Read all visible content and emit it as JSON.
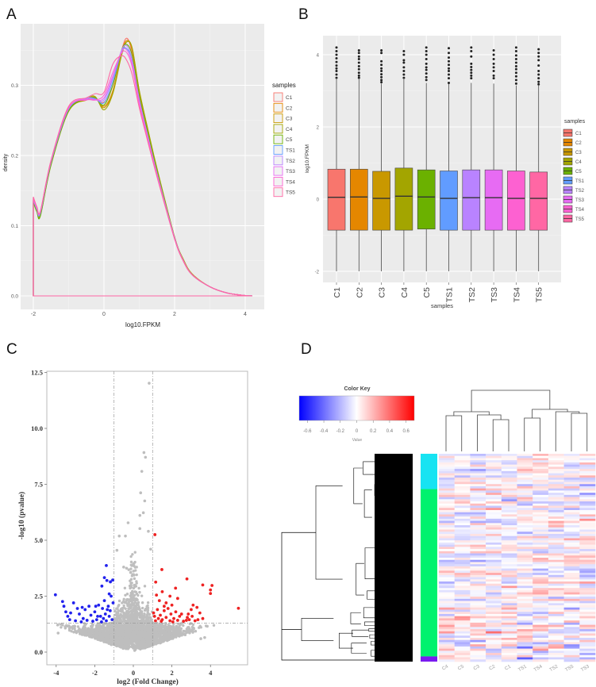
{
  "panel_labels": {
    "a": "A",
    "b": "B",
    "c": "C",
    "d": "D"
  },
  "chart_data": [
    {
      "panel": "A",
      "type": "line",
      "subtype": "density",
      "xlabel": "log10.FPKM",
      "ylabel": "density",
      "x_ticks": [
        "-2",
        "0",
        "2",
        "4"
      ],
      "y_ticks": [
        "0.0",
        "0.1",
        "0.2",
        "0.3"
      ],
      "xlim": [
        -2.35,
        4.55
      ],
      "ylim": [
        -0.019,
        0.388
      ],
      "grid": true,
      "background": "#EBEBEB",
      "legend": {
        "title": "samples",
        "position": "right"
      },
      "x": [
        -2,
        -1.9,
        -1.8,
        -1.5,
        -1,
        -0.5,
        -0.25,
        0,
        0.25,
        0.5,
        0.65,
        0.8,
        1,
        1.25,
        1.5,
        2,
        2.25,
        2.5,
        3,
        3.5,
        4,
        4.2
      ],
      "series": [
        {
          "name": "C1",
          "color": "#F8766D",
          "values": [
            0.138,
            0.125,
            0.118,
            0.19,
            0.266,
            0.279,
            0.28,
            0.276,
            0.3,
            0.35,
            0.367,
            0.345,
            0.282,
            0.228,
            0.176,
            0.082,
            0.05,
            0.03,
            0.013,
            0.004,
            0.0005,
            0
          ]
        },
        {
          "name": "C2",
          "color": "#E58700",
          "values": [
            0.136,
            0.122,
            0.116,
            0.188,
            0.263,
            0.28,
            0.282,
            0.27,
            0.292,
            0.347,
            0.364,
            0.35,
            0.29,
            0.233,
            0.18,
            0.083,
            0.051,
            0.031,
            0.013,
            0.004,
            0.0005,
            0
          ]
        },
        {
          "name": "C3",
          "color": "#C99800",
          "values": [
            0.135,
            0.121,
            0.116,
            0.188,
            0.264,
            0.279,
            0.283,
            0.268,
            0.29,
            0.345,
            0.362,
            0.352,
            0.292,
            0.235,
            0.181,
            0.084,
            0.051,
            0.031,
            0.013,
            0.004,
            0.0005,
            0
          ]
        },
        {
          "name": "C4",
          "color": "#A3A500",
          "values": [
            0.133,
            0.12,
            0.115,
            0.186,
            0.263,
            0.28,
            0.284,
            0.265,
            0.288,
            0.343,
            0.362,
            0.353,
            0.293,
            0.236,
            0.182,
            0.084,
            0.052,
            0.031,
            0.013,
            0.004,
            0.0005,
            0
          ]
        },
        {
          "name": "C5",
          "color": "#6BB100",
          "values": [
            0.134,
            0.12,
            0.114,
            0.187,
            0.264,
            0.28,
            0.282,
            0.272,
            0.3,
            0.35,
            0.358,
            0.342,
            0.285,
            0.23,
            0.178,
            0.083,
            0.05,
            0.03,
            0.013,
            0.004,
            0.0005,
            0
          ]
        },
        {
          "name": "TS1",
          "color": "#619CFF",
          "values": [
            0.137,
            0.123,
            0.118,
            0.19,
            0.266,
            0.281,
            0.281,
            0.275,
            0.305,
            0.348,
            0.352,
            0.335,
            0.28,
            0.226,
            0.175,
            0.082,
            0.05,
            0.03,
            0.013,
            0.004,
            0.0005,
            0
          ]
        },
        {
          "name": "TS2",
          "color": "#B983FF",
          "values": [
            0.137,
            0.124,
            0.119,
            0.191,
            0.267,
            0.281,
            0.28,
            0.279,
            0.31,
            0.35,
            0.356,
            0.336,
            0.28,
            0.226,
            0.175,
            0.083,
            0.05,
            0.03,
            0.013,
            0.004,
            0.0005,
            0
          ]
        },
        {
          "name": "TS3",
          "color": "#E76BF3",
          "values": [
            0.139,
            0.125,
            0.12,
            0.192,
            0.268,
            0.28,
            0.279,
            0.282,
            0.313,
            0.348,
            0.35,
            0.33,
            0.276,
            0.223,
            0.173,
            0.082,
            0.05,
            0.03,
            0.013,
            0.004,
            0.0005,
            0
          ]
        },
        {
          "name": "TS4",
          "color": "#FD61D1",
          "values": [
            0.14,
            0.126,
            0.12,
            0.192,
            0.268,
            0.279,
            0.279,
            0.286,
            0.318,
            0.346,
            0.346,
            0.326,
            0.273,
            0.221,
            0.172,
            0.081,
            0.05,
            0.03,
            0.013,
            0.004,
            0.0005,
            0
          ]
        },
        {
          "name": "TS5",
          "color": "#FF67A4",
          "values": [
            0.141,
            0.127,
            0.121,
            0.193,
            0.27,
            0.282,
            0.288,
            0.29,
            0.33,
            0.342,
            0.335,
            0.315,
            0.268,
            0.218,
            0.17,
            0.081,
            0.049,
            0.03,
            0.013,
            0.004,
            0.0005,
            0
          ]
        }
      ]
    },
    {
      "panel": "B",
      "type": "box",
      "xlabel": "samples",
      "ylabel": "log10.FPKM",
      "y_ticks": [
        "-2",
        "0",
        "2",
        "4"
      ],
      "ylim": [
        -2.31,
        4.53
      ],
      "grid": true,
      "background": "#EBEBEB",
      "legend": {
        "title": "samples",
        "position": "right"
      },
      "categories": [
        "C1",
        "C2",
        "C3",
        "C4",
        "C5",
        "TS1",
        "TS2",
        "TS3",
        "TS4",
        "TS5"
      ],
      "colors": [
        "#F8766D",
        "#E58700",
        "#C99800",
        "#A3A500",
        "#6BB100",
        "#619CFF",
        "#B983FF",
        "#E76BF3",
        "#FD61D1",
        "#FF67A4"
      ],
      "boxes": [
        {
          "min": -2,
          "q1": -0.86,
          "median": 0.05,
          "q3": 0.83,
          "max": 3.32,
          "outliers": [
            3.36,
            3.45,
            3.55,
            3.62,
            3.7,
            3.8,
            3.9,
            4.0,
            4.1,
            4.2
          ]
        },
        {
          "min": -2,
          "q1": -0.86,
          "median": 0.06,
          "q3": 0.83,
          "max": 3.32,
          "outliers": [
            3.36,
            3.42,
            3.5,
            3.6,
            3.68,
            3.78,
            3.88,
            3.95,
            4.05,
            4.12
          ]
        },
        {
          "min": -2,
          "q1": -0.86,
          "median": 0.02,
          "q3": 0.77,
          "max": 3.2,
          "outliers": [
            3.24,
            3.3,
            3.38,
            3.46,
            3.55,
            3.62,
            3.72,
            3.82,
            4.05,
            4.12
          ]
        },
        {
          "min": -2,
          "q1": -0.86,
          "median": 0.08,
          "q3": 0.86,
          "max": 3.32,
          "outliers": [
            3.36,
            3.45,
            3.55,
            3.65,
            3.78,
            3.85,
            4.0,
            4.1
          ]
        },
        {
          "min": -2,
          "q1": -0.83,
          "median": 0.06,
          "q3": 0.81,
          "max": 3.22,
          "outliers": [
            3.3,
            3.38,
            3.48,
            3.58,
            3.65,
            3.75,
            3.88,
            4.0,
            4.1,
            4.2
          ]
        },
        {
          "min": -2,
          "q1": -0.86,
          "median": 0.02,
          "q3": 0.78,
          "max": 3.2,
          "outliers": [
            3.22,
            3.35,
            3.45,
            3.55,
            3.62,
            3.72,
            3.82,
            3.92,
            4.05,
            4.18
          ]
        },
        {
          "min": -2,
          "q1": -0.86,
          "median": 0.04,
          "q3": 0.81,
          "max": 3.22,
          "outliers": [
            3.35,
            3.42,
            3.5,
            3.58,
            3.66,
            3.75,
            3.95,
            4.1,
            4.2
          ]
        },
        {
          "min": -2,
          "q1": -0.86,
          "median": 0.04,
          "q3": 0.81,
          "max": 3.2,
          "outliers": [
            3.35,
            3.42,
            3.55,
            3.65,
            3.75,
            3.88,
            4.0,
            4.12
          ]
        },
        {
          "min": -2,
          "q1": -0.86,
          "median": 0.02,
          "q3": 0.78,
          "max": 3.15,
          "outliers": [
            3.2,
            3.3,
            3.4,
            3.5,
            3.6,
            3.68,
            3.78,
            3.88,
            3.98,
            4.1,
            4.2
          ]
        },
        {
          "min": -2,
          "q1": -0.86,
          "median": 0.02,
          "q3": 0.75,
          "max": 3.15,
          "outliers": [
            3.18,
            3.25,
            3.35,
            3.45,
            3.55,
            3.7,
            3.85,
            3.95,
            4.05,
            4.15
          ]
        }
      ]
    },
    {
      "panel": "C",
      "type": "scatter",
      "subtype": "volcano",
      "xlabel": "log2 (Fold Change)",
      "ylabel": "-log10 (pvalue)",
      "x_ticks": [
        "-4",
        "-2",
        "0",
        "2",
        "4"
      ],
      "y_ticks": [
        "0.0",
        "2.5",
        "5.0",
        "7.5",
        "10.0",
        "12.5"
      ],
      "xlim": [
        -4.6,
        5.8
      ],
      "ylim": [
        -0.5,
        12.6
      ],
      "grid": false,
      "thresholds": {
        "log2_fold_change": [
          -1,
          1
        ],
        "neg_log10_pvalue": 1.3
      },
      "colors": {
        "up": "#EE2222",
        "down": "#2222EE",
        "not_significant": "#BEBEBE"
      },
      "up": [
        [
          1.12,
          5.25
        ],
        [
          1.48,
          3.69
        ],
        [
          2.78,
          3.27
        ],
        [
          3.6,
          3.0
        ],
        [
          4.08,
          2.98
        ],
        [
          4.0,
          2.78
        ],
        [
          4.0,
          2.62
        ],
        [
          5.45,
          1.96
        ],
        [
          1.16,
          3.13
        ],
        [
          2.19,
          2.86
        ],
        [
          1.2,
          2.55
        ],
        [
          1.5,
          2.7
        ],
        [
          1.9,
          2.5
        ],
        [
          2.3,
          2.4
        ],
        [
          1.35,
          2.3
        ],
        [
          1.7,
          2.2
        ],
        [
          2.0,
          2.1
        ],
        [
          1.8,
          1.95
        ],
        [
          1.25,
          1.9
        ],
        [
          1.6,
          1.85
        ],
        [
          2.2,
          1.8
        ],
        [
          2.5,
          1.7
        ],
        [
          3.1,
          2.1
        ],
        [
          3.3,
          2.0
        ],
        [
          3.0,
          1.9
        ],
        [
          3.45,
          1.75
        ],
        [
          3.6,
          1.5
        ],
        [
          2.8,
          1.55
        ],
        [
          2.9,
          1.45
        ],
        [
          3.2,
          1.4
        ],
        [
          1.1,
          1.6
        ],
        [
          1.3,
          1.5
        ],
        [
          1.5,
          1.45
        ],
        [
          1.7,
          1.55
        ],
        [
          1.9,
          1.4
        ],
        [
          2.1,
          1.5
        ],
        [
          2.3,
          1.42
        ],
        [
          2.6,
          1.38
        ],
        [
          1.15,
          1.4
        ],
        [
          1.4,
          1.65
        ],
        [
          1.95,
          1.7
        ],
        [
          2.4,
          1.6
        ],
        [
          3.35,
          1.45
        ],
        [
          2.75,
          1.42
        ],
        [
          1.05,
          1.75
        ],
        [
          1.6,
          2.05
        ],
        [
          2.05,
          1.35
        ],
        [
          1.45,
          1.38
        ],
        [
          3.05,
          1.6
        ],
        [
          2.85,
          1.7
        ]
      ],
      "down": [
        [
          -1.4,
          3.87
        ],
        [
          -1.5,
          3.33
        ],
        [
          -1.37,
          3.2
        ],
        [
          -1.19,
          3.14
        ],
        [
          -1.07,
          3.22
        ],
        [
          -1.63,
          2.95
        ],
        [
          -4.04,
          2.56
        ],
        [
          -3.67,
          2.26
        ],
        [
          -3.6,
          2.05
        ],
        [
          -3.5,
          1.8
        ],
        [
          -3.4,
          1.6
        ],
        [
          -3.1,
          2.2
        ],
        [
          -2.9,
          1.95
        ],
        [
          -2.8,
          1.7
        ],
        [
          -2.6,
          1.5
        ],
        [
          -2.5,
          1.9
        ],
        [
          -2.3,
          2.05
        ],
        [
          -2.2,
          1.65
        ],
        [
          -2.0,
          1.8
        ],
        [
          -1.9,
          1.45
        ],
        [
          -1.8,
          2.1
        ],
        [
          -1.7,
          1.6
        ],
        [
          -1.6,
          1.95
        ],
        [
          -1.5,
          2.3
        ],
        [
          -1.45,
          1.7
        ],
        [
          -1.4,
          1.4
        ],
        [
          -1.3,
          2.05
        ],
        [
          -1.25,
          1.6
        ],
        [
          -1.2,
          1.85
        ],
        [
          -1.15,
          2.5
        ],
        [
          -1.1,
          1.45
        ],
        [
          -1.05,
          2.2
        ],
        [
          -3.3,
          1.45
        ],
        [
          -3.0,
          1.4
        ],
        [
          -2.7,
          1.35
        ],
        [
          -2.4,
          1.42
        ],
        [
          -2.1,
          1.38
        ],
        [
          -1.85,
          1.6
        ],
        [
          -1.55,
          1.5
        ],
        [
          -1.35,
          1.9
        ],
        [
          -1.65,
          1.35
        ],
        [
          -1.25,
          2.6
        ],
        [
          -2.65,
          2.0
        ],
        [
          -3.25,
          1.75
        ],
        [
          -1.95,
          2.05
        ]
      ],
      "not_significant_highlights": [
        [
          0.82,
          12.02
        ],
        [
          0.55,
          8.92
        ],
        [
          0.63,
          8.71
        ],
        [
          0.44,
          8.08
        ],
        [
          0.38,
          7.12
        ],
        [
          0.59,
          6.76
        ],
        [
          0.52,
          6.23
        ],
        [
          0.34,
          6.11
        ],
        [
          -0.27,
          5.78
        ],
        [
          -0.73,
          5.19
        ],
        [
          -0.41,
          5.19
        ],
        [
          0.78,
          5.4
        ],
        [
          0.34,
          5.52
        ],
        [
          -0.85,
          4.55
        ],
        [
          0.9,
          4.6
        ],
        [
          -0.5,
          3.8
        ],
        [
          -0.35,
          3.75
        ],
        [
          -3.9,
          0.85
        ],
        [
          3.7,
          0.65
        ],
        [
          3.5,
          0.6
        ]
      ]
    },
    {
      "panel": "D",
      "type": "heatmap",
      "color_key": {
        "title": "Color Key",
        "xlabel": "Value",
        "ticks": [
          "-0.6",
          "-0.4",
          "-0.2",
          "0",
          "0.2",
          "0.4",
          "0.6"
        ],
        "range": [
          -0.7,
          0.7
        ],
        "low": "#0000FF",
        "mid": "#FFFFFF",
        "high": "#FF0000"
      },
      "columns": [
        "C4",
        "C5",
        "C3",
        "C2",
        "C1",
        "TS1",
        "TS4",
        "TS2",
        "TS5",
        "TS3"
      ],
      "column_tree": [
        [
          [
            "C4",
            "C5"
          ],
          [
            "C3",
            [
              "C2",
              "C1"
            ]
          ]
        ],
        [
          [
            "TS1",
            "TS4"
          ],
          [
            "TS2",
            [
              "TS5",
              "TS3"
            ]
          ]
        ]
      ],
      "row_groups": [
        {
          "color": "#17E3F2",
          "share": 0.17
        },
        {
          "color": "#00F26E",
          "share": 0.805
        },
        {
          "color": "#7A1AF0",
          "share": 0.025
        }
      ]
    }
  ]
}
